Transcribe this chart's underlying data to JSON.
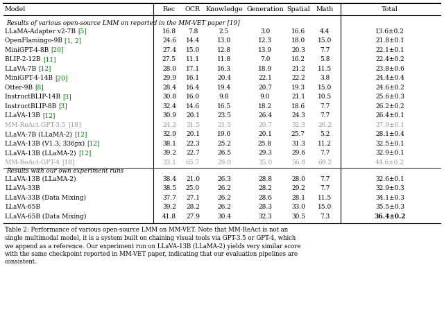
{
  "header": [
    "Model",
    "Rec",
    "OCR",
    "Knowledge",
    "Generation",
    "Spatial",
    "Math",
    "Total"
  ],
  "section1_title": "Results of various open-source LMM on reported in the MM-VET paper [19]",
  "rows_section1": [
    {
      "model": "LLaMA-Adapter v2-7B",
      "ref": "[5]",
      "rec": "16.8",
      "ocr": "7.8",
      "know": "2.5",
      "gen": "3.0",
      "spa": "16.6",
      "math": "4.4",
      "total": "13.6±0.2",
      "gray": false
    },
    {
      "model": "OpenFlamingo-9B",
      "ref": "[1, 2]",
      "rec": "24.6",
      "ocr": "14.4",
      "know": "13.0",
      "gen": "12.3",
      "spa": "18.0",
      "math": "15.0",
      "total": "21.8±0.1",
      "gray": false
    },
    {
      "model": "MiniGPT-4-8B",
      "ref": "[20]",
      "rec": "27.4",
      "ocr": "15.0",
      "know": "12.8",
      "gen": "13.9",
      "spa": "20.3",
      "math": "7.7",
      "total": "22.1±0.1",
      "gray": false
    },
    {
      "model": "BLIP-2-12B",
      "ref": "[11]",
      "rec": "27.5",
      "ocr": "11.1",
      "know": "11.8",
      "gen": "7.0",
      "spa": "16.2",
      "math": "5.8",
      "total": "22.4±0.2",
      "gray": false
    },
    {
      "model": "LLaVA-7B",
      "ref": "[12]",
      "rec": "28.0",
      "ocr": "17.1",
      "know": "16.3",
      "gen": "18.9",
      "spa": "21.2",
      "math": "11.5",
      "total": "23.8±0.6",
      "gray": false
    },
    {
      "model": "MiniGPT-4-14B",
      "ref": "[20]",
      "rec": "29.9",
      "ocr": "16.1",
      "know": "20.4",
      "gen": "22.1",
      "spa": "22.2",
      "math": "3.8",
      "total": "24.4±0.4",
      "gray": false
    },
    {
      "model": "Otter-9B",
      "ref": "[8]",
      "rec": "28.4",
      "ocr": "16.4",
      "know": "19.4",
      "gen": "20.7",
      "spa": "19.3",
      "math": "15.0",
      "total": "24.6±0.2",
      "gray": false
    },
    {
      "model": "InstructBLIP-14B",
      "ref": "[3]",
      "rec": "30.8",
      "ocr": "16.0",
      "know": "9.8",
      "gen": "9.0",
      "spa": "21.1",
      "math": "10.5",
      "total": "25.6±0.3",
      "gray": false
    },
    {
      "model": "InstructBLIP-8B",
      "ref": "[3]",
      "rec": "32.4",
      "ocr": "14.6",
      "know": "16.5",
      "gen": "18.2",
      "spa": "18.6",
      "math": "7.7",
      "total": "26.2±0.2",
      "gray": false
    },
    {
      "model": "LLaVA-13B",
      "ref": "[12]",
      "rec": "30.9",
      "ocr": "20.1",
      "know": "23.5",
      "gen": "26.4",
      "spa": "24.3",
      "math": "7.7",
      "total": "26.4±0.1",
      "gray": false
    },
    {
      "model": "MM-ReAct-GPT-3.5",
      "ref": "[18]",
      "rec": "24.2",
      "ocr": "31.5",
      "know": "21.5",
      "gen": "20.7",
      "spa": "32.3",
      "math": "26.2",
      "total": "27.9±0.1",
      "gray": true
    },
    {
      "model": "LLaVA-7B (LLaMA-2)",
      "ref": "[12]",
      "rec": "32.9",
      "ocr": "20.1",
      "know": "19.0",
      "gen": "20.1",
      "spa": "25.7",
      "math": "5.2",
      "total": "28.1±0.4",
      "gray": false
    },
    {
      "model": "LLaVA-13B (V1.3, 336px)",
      "ref": "[12]",
      "rec": "38.1",
      "ocr": "22.3",
      "know": "25.2",
      "gen": "25.8",
      "spa": "31.3",
      "math": "11.2",
      "total": "32.5±0.1",
      "gray": false
    },
    {
      "model": "LLaVA-13B (LLaMA-2)",
      "ref": "[12]",
      "rec": "39.2",
      "ocr": "22.7",
      "know": "26.5",
      "gen": "29.3",
      "spa": "29.6",
      "math": "7.7",
      "total": "32.9±0.1",
      "gray": false
    },
    {
      "model": "MM-ReAct-GPT-4",
      "ref": "[18]",
      "rec": "33.1",
      "ocr": "65.7",
      "know": "29.0",
      "gen": "35.0",
      "spa": "56.8",
      "math": "69.2",
      "total": "44.6±0.2",
      "gray": true
    }
  ],
  "section2_title": "Results with our own experiment runs",
  "rows_section2": [
    {
      "model": "LLaVA-13B (LLaMA-2)",
      "ref": "",
      "rec": "38.4",
      "ocr": "21.0",
      "know": "26.3",
      "gen": "28.8",
      "spa": "28.0",
      "math": "7.7",
      "total": "32.6±0.1",
      "bold_total": false
    },
    {
      "model": "LLaVA-33B",
      "ref": "",
      "rec": "38.5",
      "ocr": "25.0",
      "know": "26.2",
      "gen": "28.2",
      "spa": "29.2",
      "math": "7.7",
      "total": "32.9±0.3",
      "bold_total": false
    },
    {
      "model": "LLaVA-33B (Data Mixing)",
      "ref": "",
      "rec": "37.7",
      "ocr": "27.1",
      "know": "26.2",
      "gen": "28.6",
      "spa": "28.1",
      "math": "11.5",
      "total": "34.1±0.3",
      "bold_total": false
    },
    {
      "model": "LLaVA-65B",
      "ref": "",
      "rec": "39.2",
      "ocr": "28.2",
      "know": "26.2",
      "gen": "28.3",
      "spa": "33.0",
      "math": "15.0",
      "total": "35.5±0.3",
      "bold_total": false
    },
    {
      "model": "LLaVA-65B (Data Mixing)",
      "ref": "",
      "rec": "41.8",
      "ocr": "27.9",
      "know": "30.4",
      "gen": "32.3",
      "spa": "30.5",
      "math": "7.3",
      "total": "36.4±0.2",
      "bold_total": true
    }
  ],
  "caption": "Table 2: Performance of various open-source LMM on MM-VET. Note that MM-ReAct is not an\nsingle multimodal model, it is a system built on chaining visual tools via GPT-3.5 or GPT-4, which\nwe append as a reference. Our experiment run on LLaVA-13B (LLaMA-2) yields very similar score\nwith the same checkpoint reported in MM-VET paper, indicating that our evaluation pipelines are\nconsistent.",
  "ref_green": "#007700",
  "gray_color": "#999999",
  "fig_width": 6.4,
  "fig_height": 4.76
}
